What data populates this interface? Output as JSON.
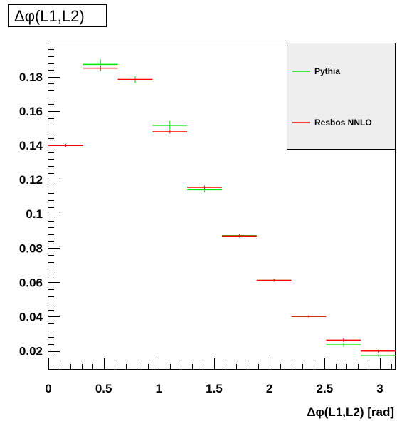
{
  "chart_data": {
    "type": "histogram",
    "title": "Δφ(L1,L2)",
    "xlabel": "Δφ(L1,L2) [rad]",
    "ylabel": "",
    "xlim": [
      0,
      3.1416
    ],
    "ylim": [
      0.009,
      0.1995
    ],
    "xticks": [
      "0",
      "0.5",
      "1",
      "1.5",
      "2",
      "2.5",
      "3"
    ],
    "yticks": [
      "0.02",
      "0.04",
      "0.06",
      "0.08",
      "0.1",
      "0.12",
      "0.14",
      "0.16",
      "0.18"
    ],
    "bin_edges": [
      0,
      0.3142,
      0.6283,
      0.9425,
      1.2566,
      1.5708,
      1.885,
      2.1991,
      2.5133,
      2.8274,
      3.1416
    ],
    "series": [
      {
        "name": "Pythia",
        "color": "#00e600",
        "values": [
          0.1399,
          0.1873,
          0.1783,
          0.1517,
          0.1141,
          0.0873,
          0.0612,
          0.0401,
          0.0235,
          0.0174
        ],
        "errors": [
          0.001,
          0.003,
          0.002,
          0.0025,
          0.0015,
          0.001,
          0.0008,
          0.0007,
          0.001,
          0.0005
        ]
      },
      {
        "name": "Resbos NNLO",
        "color": "#ff0000",
        "values": [
          0.1399,
          0.1851,
          0.1785,
          0.1479,
          0.1155,
          0.0871,
          0.0612,
          0.0402,
          0.0263,
          0.0199
        ],
        "errors": [
          0.0008,
          0.0015,
          0.001,
          0.001,
          0.001,
          0.0008,
          0.0007,
          0.0006,
          0.001,
          0.0008
        ]
      }
    ],
    "legend_position": "top-right",
    "grid": false
  }
}
